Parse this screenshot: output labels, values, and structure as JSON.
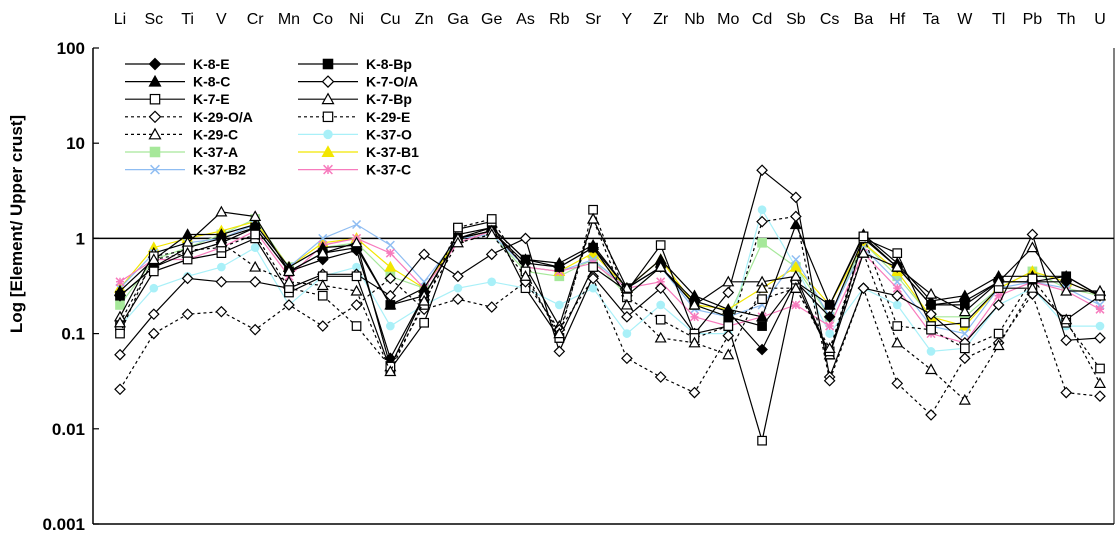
{
  "chart_data": {
    "type": "line",
    "ylabel": "Log [Element/ Upper crust]",
    "xlabel": "",
    "yscale": "log",
    "ylim": [
      0.001,
      100
    ],
    "yticks": [
      "100",
      "10",
      "1",
      "0.1",
      "0.01",
      "0.001"
    ],
    "reference_line": 1,
    "grid": false,
    "legend_position": "top-left",
    "categories": [
      "Li",
      "Sc",
      "Ti",
      "V",
      "Cr",
      "Mn",
      "Co",
      "Ni",
      "Cu",
      "Zn",
      "Ga",
      "Ge",
      "As",
      "Rb",
      "Sr",
      "Y",
      "Zr",
      "Nb",
      "Mo",
      "Cd",
      "Sb",
      "Cs",
      "Ba",
      "Hf",
      "Ta",
      "W",
      "Tl",
      "Pb",
      "Th",
      "U"
    ],
    "series": [
      {
        "name": "K-8-E",
        "color": "#000000",
        "marker": "diamond",
        "filled": true,
        "dash": "solid",
        "values": [
          0.25,
          0.5,
          0.7,
          0.9,
          1.3,
          0.45,
          0.6,
          0.75,
          0.055,
          0.25,
          1.0,
          1.2,
          0.55,
          0.5,
          0.8,
          0.25,
          0.5,
          0.22,
          0.17,
          0.068,
          0.35,
          0.15,
          1.0,
          0.5,
          0.2,
          0.22,
          0.35,
          0.35,
          0.35,
          0.25
        ]
      },
      {
        "name": "K-8-Bp",
        "color": "#000000",
        "marker": "square",
        "filled": true,
        "dash": "solid",
        "values": [
          0.25,
          0.5,
          0.8,
          1.0,
          1.3,
          0.45,
          0.7,
          0.8,
          0.2,
          0.25,
          1.0,
          1.3,
          0.6,
          0.5,
          0.8,
          0.3,
          0.5,
          0.2,
          0.15,
          0.12,
          0.35,
          0.2,
          1.05,
          0.5,
          0.2,
          0.2,
          0.35,
          0.35,
          0.4,
          0.25
        ]
      },
      {
        "name": "K-8-C",
        "color": "#000000",
        "marker": "triangle",
        "filled": true,
        "dash": "solid",
        "values": [
          0.28,
          0.6,
          1.1,
          1.1,
          1.4,
          0.5,
          0.8,
          0.85,
          0.2,
          0.3,
          1.1,
          1.3,
          0.6,
          0.55,
          0.85,
          0.3,
          0.6,
          0.25,
          0.18,
          0.15,
          1.4,
          0.2,
          1.1,
          0.55,
          0.22,
          0.25,
          0.4,
          0.4,
          0.4,
          0.25
        ]
      },
      {
        "name": "K-7-O/A",
        "color": "#000000",
        "marker": "diamond",
        "filled": false,
        "dash": "solid",
        "values": [
          0.06,
          0.16,
          0.38,
          0.35,
          0.35,
          0.3,
          0.42,
          0.42,
          0.25,
          0.68,
          0.4,
          0.68,
          1.0,
          0.065,
          0.4,
          0.15,
          0.3,
          0.1,
          0.27,
          5.2,
          2.7,
          0.035,
          0.3,
          0.25,
          0.16,
          0.08,
          0.2,
          1.1,
          0.085,
          0.09
        ]
      },
      {
        "name": "K-7-E",
        "color": "#000000",
        "marker": "square",
        "filled": false,
        "dash": "solid",
        "values": [
          0.12,
          0.45,
          0.6,
          0.7,
          1.0,
          0.27,
          0.4,
          0.4,
          0.042,
          0.13,
          1.25,
          1.5,
          0.3,
          0.09,
          0.5,
          0.28,
          0.85,
          0.1,
          0.12,
          0.0075,
          0.35,
          0.06,
          1.0,
          0.7,
          0.12,
          0.13,
          0.3,
          0.3,
          0.14,
          0.25
        ]
      },
      {
        "name": "K-7-Bp",
        "color": "#000000",
        "marker": "triangle",
        "filled": false,
        "dash": "solid",
        "values": [
          0.15,
          0.7,
          0.9,
          1.9,
          1.7,
          0.45,
          0.7,
          0.9,
          0.045,
          0.25,
          1.0,
          1.2,
          0.5,
          0.12,
          1.6,
          0.3,
          0.5,
          0.2,
          0.35,
          0.35,
          0.4,
          0.06,
          0.7,
          0.5,
          0.26,
          0.17,
          0.35,
          0.8,
          0.28,
          0.28
        ]
      },
      {
        "name": "K-29-O/A",
        "color": "#000000",
        "marker": "diamond",
        "filled": false,
        "dash": "dotted",
        "values": [
          0.026,
          0.1,
          0.16,
          0.17,
          0.11,
          0.2,
          0.12,
          0.2,
          0.38,
          0.18,
          0.23,
          0.19,
          0.35,
          0.11,
          0.38,
          0.055,
          0.035,
          0.024,
          0.095,
          1.5,
          1.7,
          0.032,
          0.3,
          0.03,
          0.014,
          0.055,
          0.08,
          0.26,
          0.024,
          0.022
        ]
      },
      {
        "name": "K-29-E",
        "color": "#000000",
        "marker": "square",
        "filled": false,
        "dash": "dotted",
        "values": [
          0.1,
          0.65,
          0.75,
          0.8,
          1.1,
          0.3,
          0.25,
          0.12,
          0.045,
          0.2,
          1.3,
          1.6,
          0.45,
          0.09,
          2.0,
          0.24,
          0.14,
          0.09,
          0.12,
          0.23,
          0.3,
          0.065,
          1.05,
          0.12,
          0.11,
          0.07,
          0.1,
          0.38,
          0.13,
          0.043
        ]
      },
      {
        "name": "K-29-C",
        "color": "#000000",
        "marker": "triangle",
        "filled": false,
        "dash": "dotted",
        "values": [
          0.13,
          0.6,
          0.7,
          0.9,
          0.5,
          0.35,
          0.32,
          0.28,
          0.04,
          0.22,
          0.9,
          1.1,
          0.4,
          0.1,
          1.6,
          0.2,
          0.09,
          0.08,
          0.06,
          0.3,
          0.3,
          0.07,
          0.7,
          0.08,
          0.042,
          0.02,
          0.075,
          0.3,
          0.14,
          0.03
        ]
      },
      {
        "name": "K-37-O",
        "color": "#a9f0f8",
        "marker": "circle",
        "filled": true,
        "dash": "solid",
        "values": [
          0.12,
          0.3,
          0.4,
          0.5,
          0.8,
          0.2,
          0.4,
          0.5,
          0.12,
          0.2,
          0.3,
          0.35,
          0.3,
          0.2,
          0.3,
          0.1,
          0.2,
          0.1,
          0.1,
          2.0,
          0.5,
          0.1,
          0.3,
          0.2,
          0.065,
          0.07,
          0.2,
          0.3,
          0.12,
          0.12
        ]
      },
      {
        "name": "K-37-A",
        "color": "#a6e89a",
        "marker": "square",
        "filled": true,
        "dash": "solid",
        "values": [
          0.2,
          0.6,
          0.8,
          1.1,
          1.6,
          0.5,
          0.8,
          0.9,
          0.4,
          0.3,
          1.0,
          1.1,
          0.45,
          0.4,
          0.6,
          0.25,
          0.5,
          0.2,
          0.15,
          0.9,
          0.5,
          0.15,
          0.9,
          0.4,
          0.15,
          0.15,
          0.3,
          0.45,
          0.3,
          0.25
        ]
      },
      {
        "name": "K-37-B1",
        "color": "#f2e600",
        "marker": "triangle",
        "filled": true,
        "dash": "solid",
        "values": [
          0.3,
          0.8,
          1.0,
          1.2,
          1.5,
          0.5,
          0.9,
          1.0,
          0.5,
          0.3,
          1.0,
          1.2,
          0.5,
          0.45,
          0.7,
          0.3,
          0.6,
          0.2,
          0.18,
          0.3,
          0.5,
          0.2,
          0.9,
          0.45,
          0.15,
          0.12,
          0.3,
          0.45,
          0.35,
          0.25
        ]
      },
      {
        "name": "K-37-B2",
        "color": "#8fbdf2",
        "marker": "x",
        "filled": false,
        "dash": "solid",
        "values": [
          0.3,
          0.7,
          0.9,
          1.0,
          1.4,
          0.5,
          1.0,
          1.4,
          0.85,
          0.35,
          1.0,
          1.1,
          0.5,
          0.45,
          0.6,
          0.3,
          0.5,
          0.18,
          0.15,
          0.2,
          0.6,
          0.15,
          0.8,
          0.35,
          0.12,
          0.1,
          0.3,
          0.35,
          0.3,
          0.2
        ]
      },
      {
        "name": "K-37-C",
        "color": "#f77bbd",
        "marker": "star",
        "filled": false,
        "dash": "solid",
        "values": [
          0.35,
          0.6,
          0.6,
          0.8,
          1.2,
          0.4,
          0.85,
          1.0,
          0.7,
          0.3,
          0.9,
          1.2,
          0.5,
          0.45,
          0.55,
          0.3,
          0.35,
          0.15,
          0.12,
          0.15,
          0.2,
          0.12,
          0.7,
          0.3,
          0.1,
          0.08,
          0.25,
          0.35,
          0.28,
          0.18
        ]
      }
    ]
  }
}
